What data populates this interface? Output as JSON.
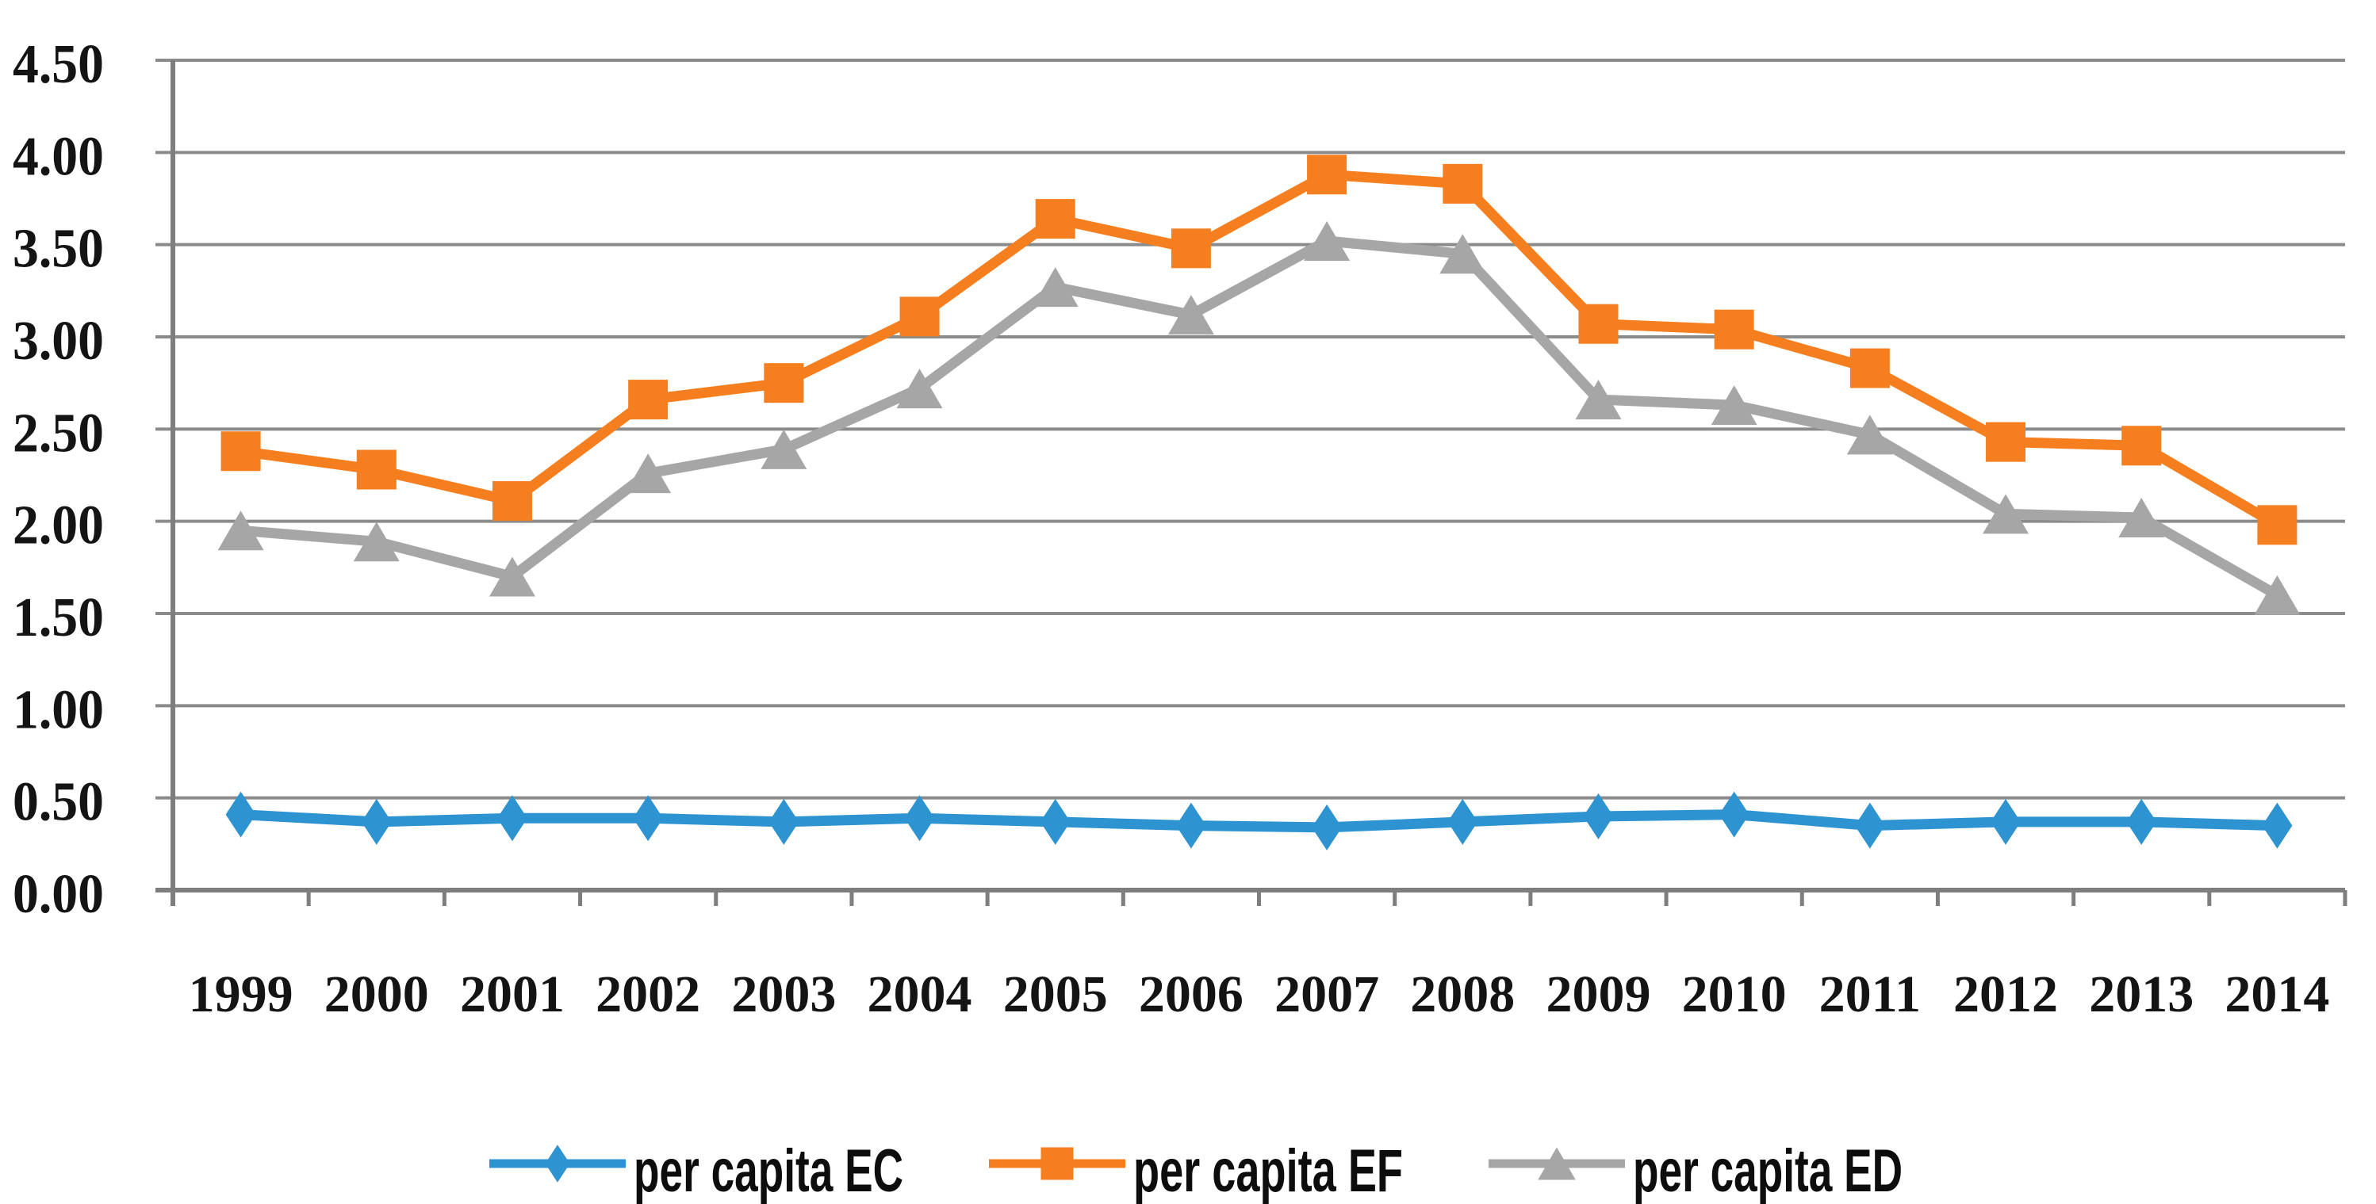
{
  "chart_data": {
    "type": "line",
    "title": "",
    "x_categories": [
      "1999",
      "2000",
      "2001",
      "2002",
      "2003",
      "2004",
      "2005",
      "2006",
      "2007",
      "2008",
      "2009",
      "2010",
      "2011",
      "2012",
      "2013",
      "2014"
    ],
    "y_axis": {
      "min": 0,
      "max": 4.5,
      "step": 0.5,
      "tick_labels": [
        "0.00",
        "0.50",
        "1.00",
        "1.50",
        "2.00",
        "2.50",
        "3.00",
        "3.50",
        "4.00",
        "4.50"
      ]
    },
    "grid": true,
    "legend_position": "bottom",
    "series": [
      {
        "name": "per capita EC",
        "marker": "diamond",
        "color": "#2E93D1",
        "values": [
          0.41,
          0.37,
          0.39,
          0.39,
          0.37,
          0.39,
          0.37,
          0.35,
          0.34,
          0.37,
          0.4,
          0.41,
          0.35,
          0.37,
          0.37,
          0.35
        ]
      },
      {
        "name": "per capita EF",
        "marker": "square",
        "color": "#F57E1F",
        "values": [
          2.38,
          2.28,
          2.11,
          2.66,
          2.75,
          3.11,
          3.64,
          3.48,
          3.88,
          3.83,
          3.07,
          3.04,
          2.83,
          2.43,
          2.41,
          1.98
        ]
      },
      {
        "name": "per capita ED",
        "marker": "triangle",
        "color": "#A6A6A6",
        "values": [
          1.95,
          1.89,
          1.7,
          2.26,
          2.39,
          2.72,
          3.27,
          3.12,
          3.52,
          3.45,
          2.66,
          2.63,
          2.47,
          2.04,
          2.02,
          1.6
        ]
      }
    ]
  },
  "style_colors": {
    "gridline": "#8B8B8B",
    "axis": "#7E7E7E",
    "text": "#141414",
    "background": "#FFFFFF"
  }
}
